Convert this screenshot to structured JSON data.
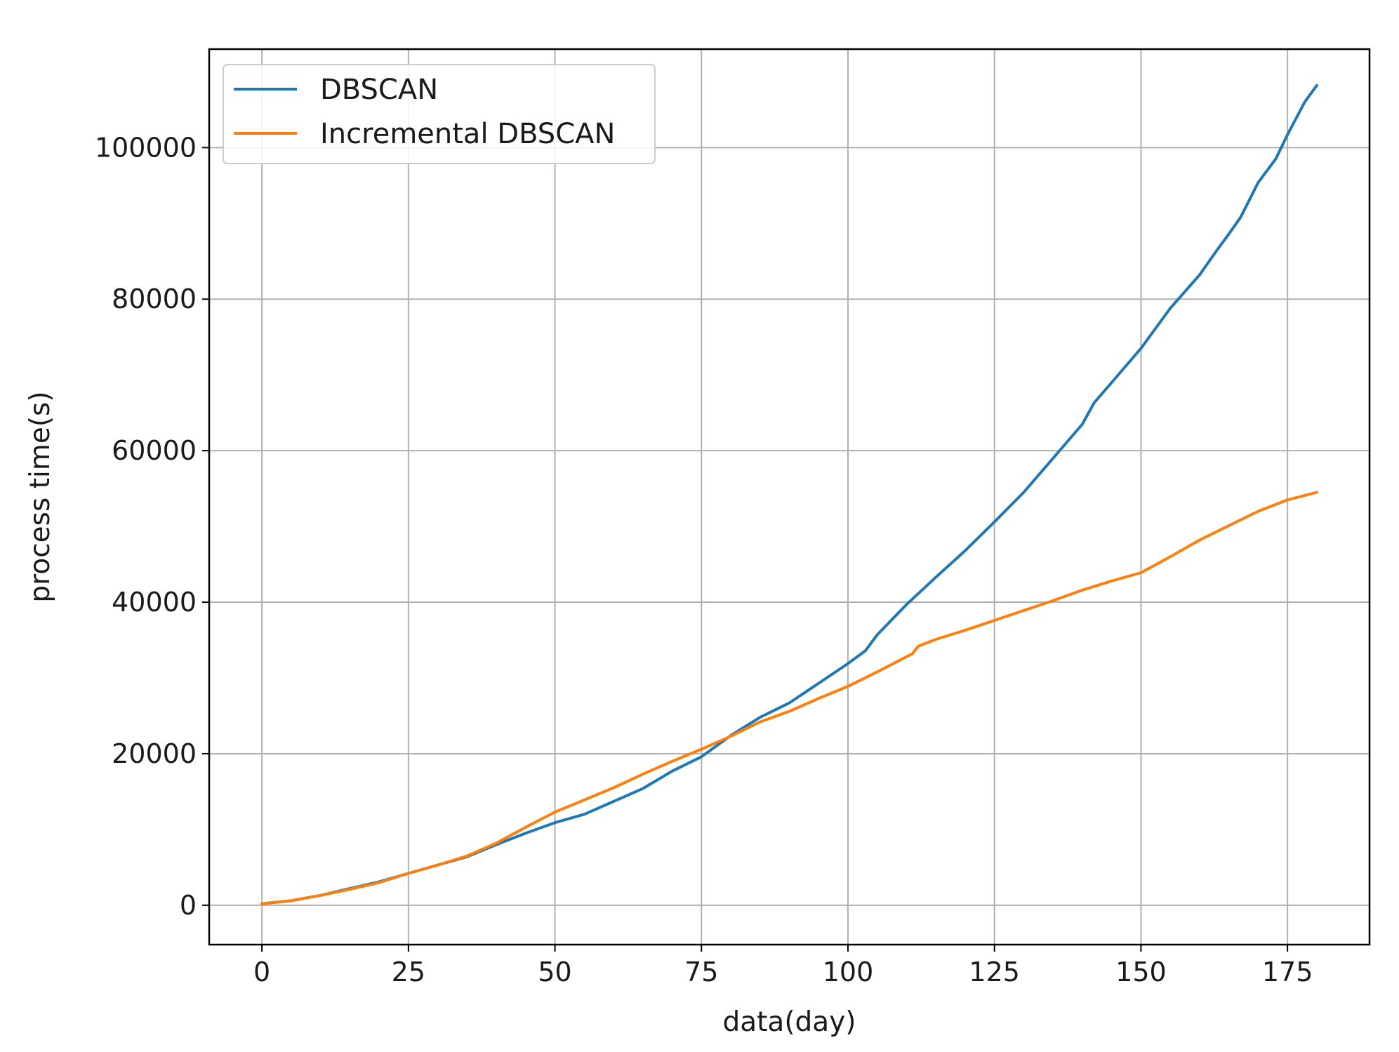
{
  "chart_data": {
    "type": "line",
    "title": "",
    "xlabel": "data(day)",
    "ylabel": "process time(s)",
    "xlim": [
      -9,
      189
    ],
    "ylim": [
      -5200,
      113000
    ],
    "xticks": [
      0,
      25,
      50,
      75,
      100,
      125,
      150,
      175
    ],
    "yticks": [
      0,
      20000,
      40000,
      60000,
      80000,
      100000
    ],
    "xtick_labels": [
      "0",
      "25",
      "50",
      "75",
      "100",
      "125",
      "150",
      "175"
    ],
    "ytick_labels": [
      "0",
      "20000",
      "40000",
      "60000",
      "80000",
      "100000"
    ],
    "grid": true,
    "legend_position": "top-left",
    "series": [
      {
        "name": "DBSCAN",
        "color": "#1f77b4",
        "x": [
          0,
          5,
          10,
          15,
          20,
          25,
          30,
          35,
          40,
          45,
          50,
          55,
          60,
          65,
          70,
          75,
          80,
          85,
          90,
          95,
          100,
          103,
          105,
          110,
          115,
          120,
          125,
          130,
          135,
          140,
          142,
          145,
          150,
          155,
          160,
          163,
          165,
          167,
          170,
          173,
          175,
          178,
          180
        ],
        "y": [
          200,
          600,
          1300,
          2200,
          3100,
          4200,
          5300,
          6400,
          8000,
          9500,
          10900,
          12000,
          13700,
          15400,
          17700,
          19600,
          22400,
          24800,
          26700,
          29300,
          31900,
          33600,
          35700,
          39700,
          43300,
          46800,
          50600,
          54500,
          59000,
          63500,
          66300,
          69000,
          73500,
          78800,
          83200,
          86500,
          88600,
          90800,
          95400,
          98500,
          101700,
          106100,
          108200
        ]
      },
      {
        "name": "Incremental DBSCAN",
        "color": "#ff7f0e",
        "x": [
          0,
          5,
          10,
          15,
          20,
          25,
          30,
          35,
          40,
          45,
          50,
          55,
          60,
          65,
          70,
          75,
          80,
          85,
          90,
          95,
          100,
          105,
          111,
          112,
          115,
          120,
          125,
          130,
          135,
          140,
          145,
          150,
          155,
          160,
          165,
          170,
          175,
          180
        ],
        "y": [
          200,
          600,
          1300,
          2100,
          3000,
          4200,
          5300,
          6500,
          8200,
          10300,
          12300,
          13900,
          15500,
          17300,
          19000,
          20600,
          22300,
          24200,
          25600,
          27300,
          28900,
          30800,
          33200,
          34200,
          35100,
          36300,
          37600,
          38900,
          40200,
          41600,
          42800,
          43900,
          46000,
          48200,
          50100,
          52000,
          53500,
          54500
        ]
      }
    ]
  }
}
